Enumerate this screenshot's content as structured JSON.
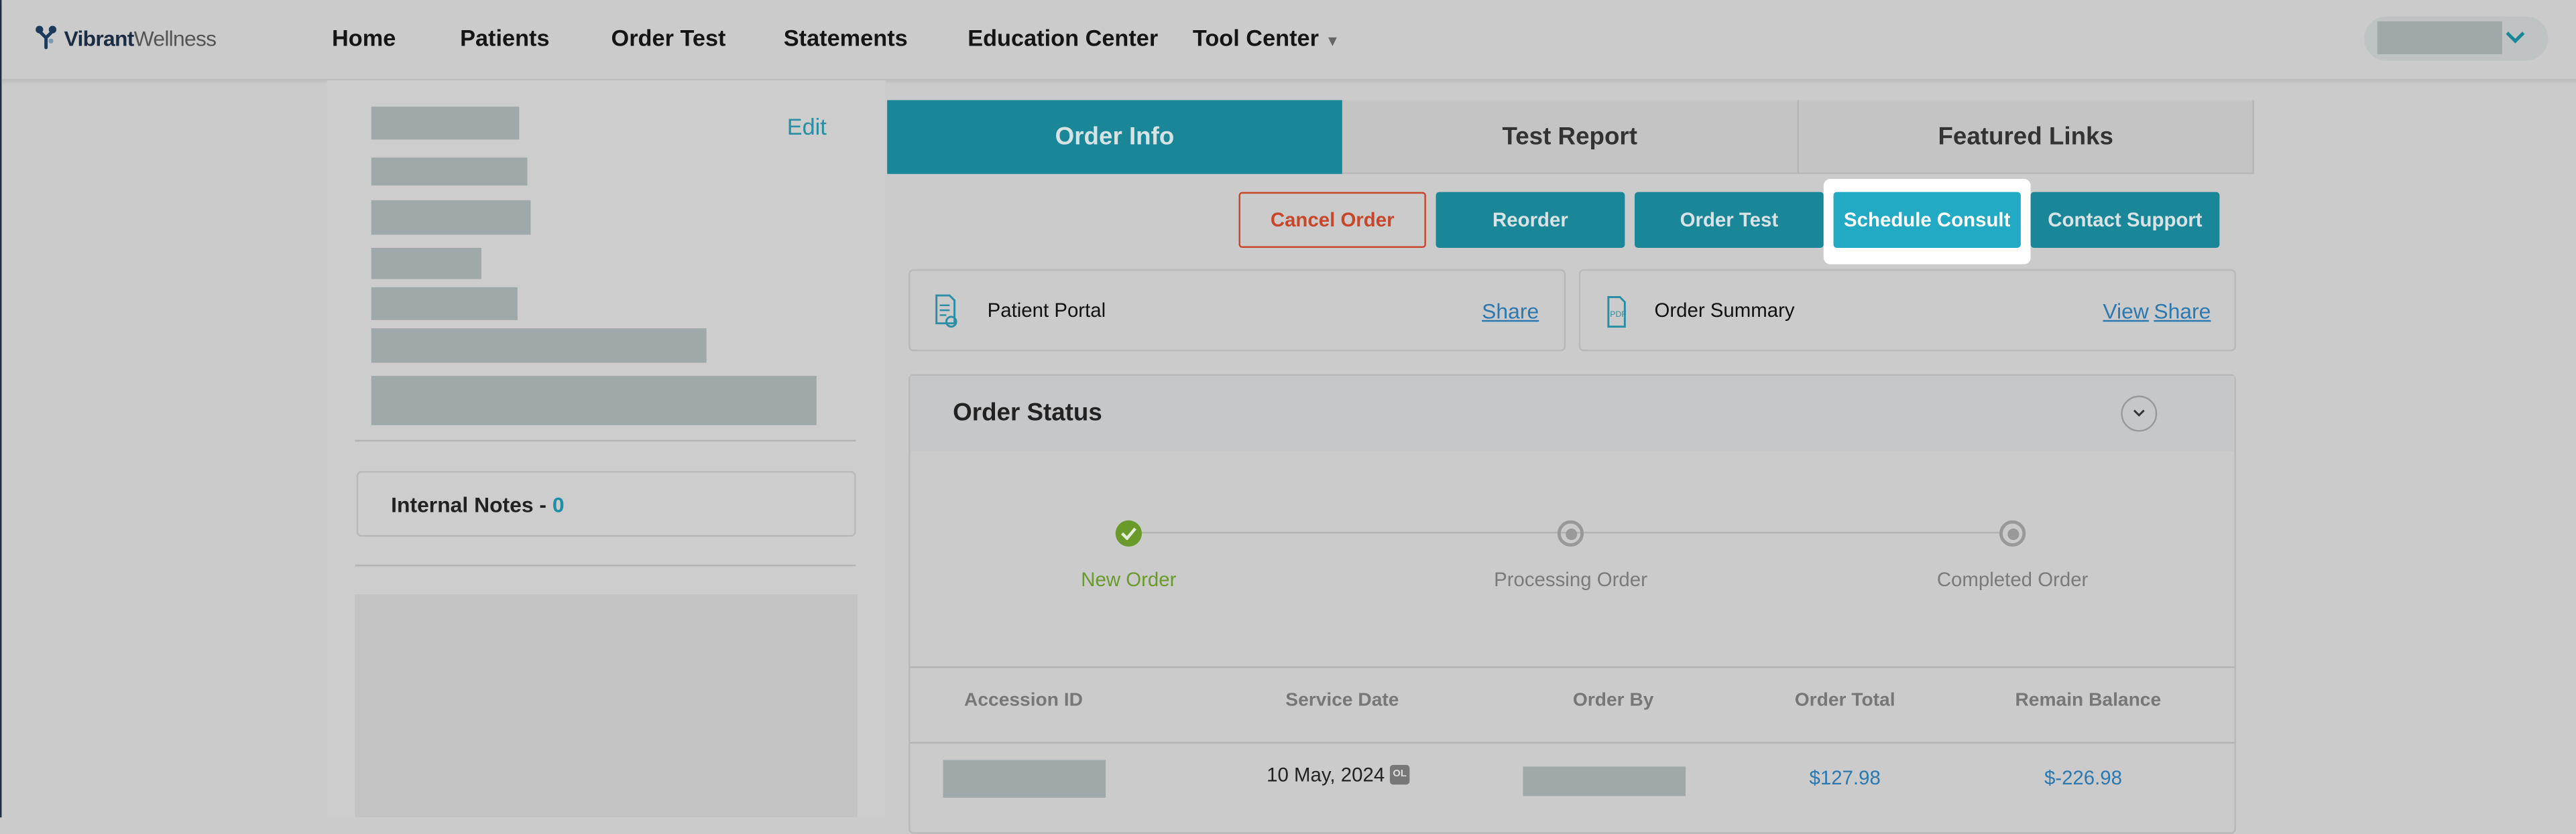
{
  "nav": {
    "logo_bold": "Vibrant",
    "logo_light": "Wellness",
    "items": [
      {
        "label": "Home"
      },
      {
        "label": "Patients"
      },
      {
        "label": "Order Test"
      },
      {
        "label": "Statements"
      },
      {
        "label": "Education Center"
      },
      {
        "label": "Tool Center"
      }
    ],
    "tool_center_icon": "chevron-down-icon",
    "user_menu_icon": "chevron-down-icon"
  },
  "patient_panel": {
    "edit_label": "Edit",
    "internal_notes_label": "Internal Notes - ",
    "internal_notes_count": "0"
  },
  "tabs": [
    {
      "label": "Order Info",
      "active": true
    },
    {
      "label": "Test Report"
    },
    {
      "label": "Featured Links"
    }
  ],
  "actions": {
    "cancel": "Cancel Order",
    "reorder": "Reorder",
    "order_test": "Order Test",
    "schedule_consult": "Schedule Consult",
    "contact_support": "Contact Support"
  },
  "cards": {
    "patient_portal": {
      "label": "Patient Portal",
      "share": "Share"
    },
    "order_summary": {
      "label": "Order Summary",
      "view": "View",
      "share": "Share"
    }
  },
  "order_status": {
    "title": "Order Status",
    "steps": [
      {
        "label": "New Order",
        "done": true
      },
      {
        "label": "Processing Order"
      },
      {
        "label": "Completed Order"
      }
    ]
  },
  "table": {
    "headers": [
      "Accession ID",
      "Service Date",
      "Order By",
      "Order Total",
      "Remain Balance"
    ],
    "row": {
      "service_date": "10 May, 2024",
      "badge": "OL",
      "order_total": "$127.98",
      "remain_balance": "$-226.98"
    }
  },
  "colors": {
    "accent": "#1a8799",
    "highlight": "#22a9c4",
    "cancel": "#c8472a",
    "success": "#6a9a2a",
    "link": "#2b79b0"
  }
}
